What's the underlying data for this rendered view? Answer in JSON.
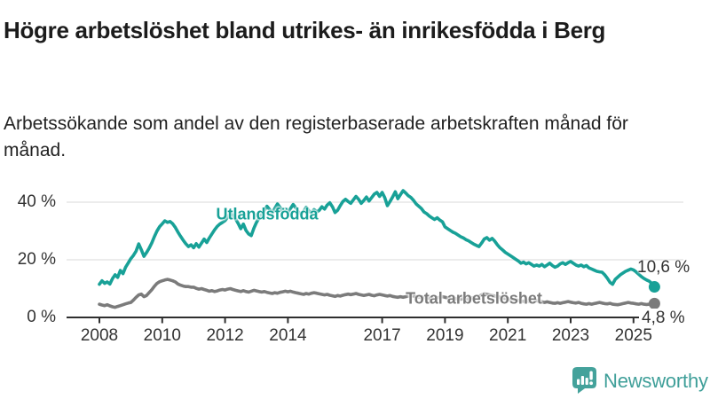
{
  "colors": {
    "foreign_born_line": "#18a197",
    "total_line": "#7b7b7b",
    "gridline": "#e0e0e0",
    "axis": "#2f2f2f",
    "axis_text": "#333333",
    "title_text": "#1c1c1c",
    "logo_teal": "#44a29b"
  },
  "branding": {
    "logo_text": "Newsworthy",
    "logo_icon": "bar-chart-speech-bubble"
  },
  "chart_data": {
    "type": "line",
    "title": "Högre arbetslöshet bland utrikes- än inrikesfödda i Berg",
    "subtitle": "Arbetssökande som andel av den registerbaserade arbetskraften månad för månad.",
    "x_unit": "month",
    "x_start": "2008-01",
    "x_end": "2025-09",
    "points_per_year": 12,
    "xlim": [
      2008,
      2025.75
    ],
    "ylim": [
      0,
      50
    ],
    "grid": "horizontal",
    "legend": "inline-labels",
    "y_ticks": [
      {
        "value": 0,
        "label": "0 %"
      },
      {
        "value": 20,
        "label": "20 %"
      },
      {
        "value": 40,
        "label": "40 %"
      }
    ],
    "x_ticks": [
      {
        "value": 2008,
        "label": "2008"
      },
      {
        "value": 2010,
        "label": "2010"
      },
      {
        "value": 2012,
        "label": "2012"
      },
      {
        "value": 2014,
        "label": "2014"
      },
      {
        "value": 2017,
        "label": "2017"
      },
      {
        "value": 2019,
        "label": "2019"
      },
      {
        "value": 2021,
        "label": "2021"
      },
      {
        "value": 2023,
        "label": "2023"
      },
      {
        "value": 2025,
        "label": "2025"
      }
    ],
    "series": [
      {
        "name": "Utlandsfödda",
        "color": "#18a197",
        "end_label": "10,6 %",
        "end_value": 10.6,
        "values": [
          11.5,
          12.7,
          11.8,
          12.3,
          11.6,
          13.5,
          14.8,
          13.9,
          16.3,
          15.2,
          17.4,
          18.9,
          20.4,
          21.5,
          23.0,
          25.5,
          23.5,
          21.2,
          22.5,
          24.0,
          25.8,
          28.0,
          30.0,
          31.5,
          32.5,
          33.5,
          33.0,
          33.3,
          32.5,
          31.2,
          29.6,
          28.2,
          26.8,
          25.6,
          24.6,
          25.2,
          24.2,
          25.6,
          24.4,
          25.8,
          27.2,
          26.0,
          27.6,
          29.0,
          30.4,
          31.6,
          32.4,
          33.0,
          33.6,
          34.8,
          36.3,
          35.4,
          34.2,
          32.6,
          30.8,
          32.4,
          30.2,
          29.0,
          28.4,
          31.0,
          33.0,
          34.5,
          35.8,
          37.2,
          38.6,
          37.4,
          36.2,
          37.8,
          39.4,
          38.2,
          36.8,
          37.6,
          36.4,
          37.8,
          39.2,
          38.0,
          36.6,
          35.8,
          36.8,
          38.2,
          37.0,
          36.2,
          37.4,
          36.6,
          37.2,
          38.4,
          37.6,
          39.0,
          39.8,
          38.4,
          36.4,
          37.2,
          38.8,
          40.2,
          41.0,
          40.2,
          39.6,
          40.8,
          42.0,
          41.0,
          39.6,
          40.6,
          41.8,
          40.4,
          41.6,
          42.8,
          43.4,
          42.0,
          43.4,
          41.6,
          38.8,
          40.2,
          41.8,
          43.6,
          41.2,
          42.6,
          44.0,
          43.2,
          42.2,
          41.6,
          40.6,
          39.4,
          38.6,
          37.8,
          36.6,
          36.0,
          35.2,
          34.6,
          34.0,
          34.6,
          33.8,
          33.2,
          31.4,
          30.8,
          30.2,
          29.6,
          29.2,
          28.6,
          28.0,
          27.6,
          27.0,
          26.6,
          26.0,
          25.4,
          25.0,
          24.6,
          25.8,
          27.2,
          27.7,
          26.8,
          27.4,
          26.5,
          25.2,
          24.2,
          23.4,
          22.6,
          22.0,
          21.4,
          20.8,
          20.2,
          19.6,
          18.8,
          19.2,
          18.6,
          19.0,
          18.4,
          17.8,
          18.2,
          17.8,
          18.4,
          17.6,
          18.2,
          18.8,
          18.0,
          17.4,
          17.8,
          18.6,
          19.0,
          18.4,
          19.0,
          19.4,
          18.8,
          18.2,
          17.8,
          18.2,
          17.6,
          18.0,
          17.2,
          16.8,
          16.4,
          16.0,
          15.8,
          15.7,
          14.8,
          13.6,
          12.2,
          11.5,
          13.2,
          14.0,
          14.8,
          15.4,
          16.0,
          16.4,
          16.8,
          16.5,
          15.8,
          15.0,
          14.2,
          13.5,
          13.0,
          12.6,
          11.8,
          10.6
        ]
      },
      {
        "name": "Total arbetslöshet",
        "color": "#7b7b7b",
        "end_label": "4,8 %",
        "end_value": 4.8,
        "values": [
          4.6,
          4.3,
          4.1,
          4.4,
          4.0,
          3.7,
          3.5,
          3.8,
          4.1,
          4.4,
          4.7,
          5.0,
          5.2,
          6.0,
          7.0,
          7.8,
          8.1,
          7.2,
          7.6,
          8.6,
          9.6,
          10.8,
          11.8,
          12.4,
          12.7,
          13.0,
          13.2,
          13.0,
          12.7,
          12.3,
          11.6,
          11.2,
          10.9,
          10.7,
          10.7,
          10.5,
          10.5,
          10.1,
          9.8,
          10.0,
          9.7,
          9.4,
          9.1,
          9.3,
          9.0,
          9.2,
          9.5,
          9.7,
          9.5,
          9.8,
          10.0,
          9.7,
          9.4,
          9.2,
          9.0,
          9.3,
          9.0,
          8.8,
          9.1,
          9.4,
          9.2,
          9.0,
          8.8,
          9.0,
          8.7,
          8.5,
          8.3,
          8.6,
          8.4,
          8.7,
          8.9,
          9.1,
          8.9,
          9.1,
          8.8,
          8.6,
          8.4,
          8.2,
          8.0,
          8.3,
          8.1,
          8.4,
          8.6,
          8.4,
          8.2,
          8.0,
          7.8,
          8.0,
          7.7,
          7.5,
          7.3,
          7.6,
          7.4,
          7.7,
          7.9,
          8.1,
          7.9,
          8.1,
          8.3,
          8.0,
          7.8,
          7.6,
          7.8,
          8.0,
          7.7,
          7.5,
          7.8,
          8.0,
          7.8,
          7.6,
          7.4,
          7.6,
          7.3,
          7.1,
          7.0,
          7.2,
          7.0,
          7.2,
          7.4,
          7.6,
          7.4,
          7.2,
          7.0,
          7.2,
          6.9,
          6.7,
          6.6,
          6.8,
          6.6,
          6.8,
          7.0,
          7.2,
          7.0,
          6.8,
          6.6,
          6.8,
          6.5,
          6.4,
          6.3,
          6.5,
          6.3,
          6.5,
          6.7,
          6.9,
          7.1,
          7.3,
          7.8,
          8.2,
          8.0,
          7.8,
          7.6,
          7.4,
          7.2,
          7.0,
          6.8,
          6.6,
          6.4,
          6.2,
          6.0,
          6.2,
          5.9,
          5.7,
          5.6,
          5.8,
          5.6,
          5.4,
          5.6,
          5.8,
          5.6,
          5.4,
          5.2,
          5.4,
          5.2,
          5.0,
          4.9,
          5.1,
          4.9,
          5.1,
          5.3,
          5.5,
          5.3,
          5.1,
          5.0,
          5.2,
          4.9,
          4.7,
          4.6,
          4.8,
          4.6,
          4.8,
          5.0,
          5.2,
          5.0,
          4.8,
          4.7,
          4.9,
          4.6,
          4.5,
          4.4,
          4.6,
          4.8,
          5.0,
          5.2,
          5.0,
          4.9,
          4.7,
          4.6,
          4.8,
          4.6,
          4.5,
          4.6,
          4.7,
          4.8
        ]
      }
    ]
  }
}
